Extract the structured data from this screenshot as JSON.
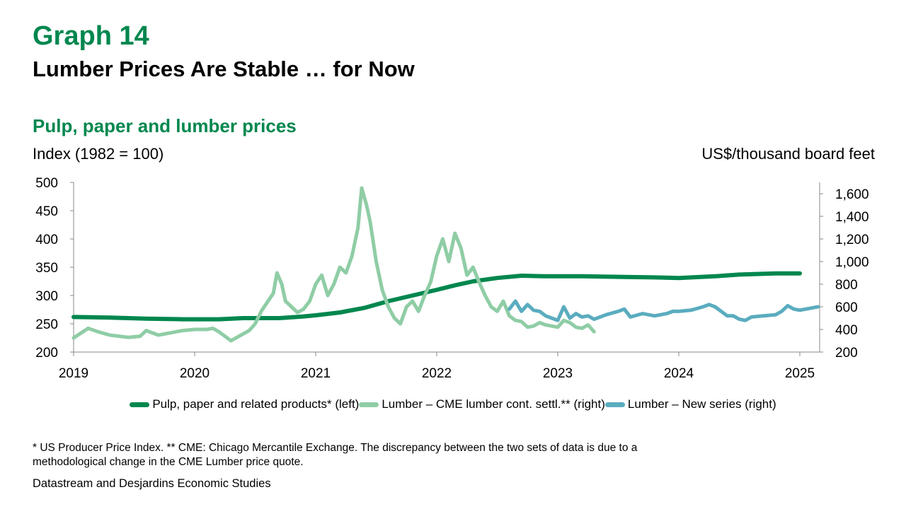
{
  "header": {
    "graph_number": "Graph 14",
    "title": "Lumber Prices Are Stable … for Now"
  },
  "footnote": "* US Producer Price Index. ** CME: Chicago Mercantile Exchange. The discrepancy between the two sets of data is due to a methodological change in the CME Lumber price quote.",
  "source": "Datastream and Desjardins Economic Studies",
  "colors": {
    "pulp": "#00874E",
    "cme": "#8FCDA5",
    "new": "#5AACBF",
    "title": "#00874E"
  },
  "chart_data": {
    "type": "line",
    "title": "Pulp, paper and lumber prices",
    "ylabel_left": "Index (1982 = 100)",
    "ylabel_right": "US$/thousand board feet",
    "xlim": [
      2019.0,
      2025.2
    ],
    "x_ticks": [
      "2019",
      "2020",
      "2021",
      "2022",
      "2023",
      "2024",
      "2025"
    ],
    "ylim_left": [
      200,
      500
    ],
    "y_ticks_left": [
      "200",
      "250",
      "300",
      "350",
      "400",
      "450",
      "500"
    ],
    "ylim_right": [
      200,
      1700
    ],
    "y_ticks_right": [
      "200",
      "400",
      "600",
      "800",
      "1,000",
      "1,200",
      "1,400",
      "1,600"
    ],
    "grid": false,
    "legend_position": "bottom",
    "series": [
      {
        "name": "Pulp, paper and related products* (left)",
        "axis": "left",
        "points": [
          [
            2019.0,
            262
          ],
          [
            2019.3,
            261
          ],
          [
            2019.6,
            259
          ],
          [
            2019.9,
            258
          ],
          [
            2020.2,
            258
          ],
          [
            2020.4,
            260
          ],
          [
            2020.7,
            260
          ],
          [
            2020.9,
            263
          ],
          [
            2021.0,
            265
          ],
          [
            2021.2,
            270
          ],
          [
            2021.4,
            278
          ],
          [
            2021.6,
            290
          ],
          [
            2021.8,
            300
          ],
          [
            2022.0,
            310
          ],
          [
            2022.15,
            318
          ],
          [
            2022.3,
            325
          ],
          [
            2022.5,
            331
          ],
          [
            2022.7,
            335
          ],
          [
            2022.9,
            334
          ],
          [
            2023.2,
            334
          ],
          [
            2023.5,
            333
          ],
          [
            2023.8,
            332
          ],
          [
            2024.0,
            331
          ],
          [
            2024.3,
            334
          ],
          [
            2024.5,
            337
          ],
          [
            2024.8,
            339
          ],
          [
            2025.0,
            339
          ]
        ]
      },
      {
        "name": "Lumber – CME lumber cont. settl.** (right)",
        "axis": "right",
        "points": [
          [
            2019.0,
            325
          ],
          [
            2019.05,
            360
          ],
          [
            2019.12,
            410
          ],
          [
            2019.2,
            380
          ],
          [
            2019.3,
            350
          ],
          [
            2019.45,
            330
          ],
          [
            2019.55,
            340
          ],
          [
            2019.6,
            390
          ],
          [
            2019.7,
            350
          ],
          [
            2019.8,
            370
          ],
          [
            2019.9,
            390
          ],
          [
            2020.0,
            400
          ],
          [
            2020.1,
            400
          ],
          [
            2020.15,
            410
          ],
          [
            2020.2,
            380
          ],
          [
            2020.25,
            340
          ],
          [
            2020.3,
            300
          ],
          [
            2020.35,
            330
          ],
          [
            2020.4,
            360
          ],
          [
            2020.45,
            390
          ],
          [
            2020.5,
            450
          ],
          [
            2020.55,
            560
          ],
          [
            2020.6,
            640
          ],
          [
            2020.65,
            720
          ],
          [
            2020.68,
            900
          ],
          [
            2020.72,
            800
          ],
          [
            2020.75,
            650
          ],
          [
            2020.8,
            600
          ],
          [
            2020.85,
            550
          ],
          [
            2020.9,
            580
          ],
          [
            2020.95,
            650
          ],
          [
            2021.0,
            800
          ],
          [
            2021.05,
            880
          ],
          [
            2021.1,
            700
          ],
          [
            2021.15,
            800
          ],
          [
            2021.2,
            950
          ],
          [
            2021.25,
            900
          ],
          [
            2021.3,
            1050
          ],
          [
            2021.35,
            1300
          ],
          [
            2021.38,
            1650
          ],
          [
            2021.42,
            1500
          ],
          [
            2021.45,
            1350
          ],
          [
            2021.5,
            1000
          ],
          [
            2021.55,
            750
          ],
          [
            2021.6,
            600
          ],
          [
            2021.65,
            500
          ],
          [
            2021.7,
            450
          ],
          [
            2021.75,
            600
          ],
          [
            2021.8,
            650
          ],
          [
            2021.85,
            560
          ],
          [
            2021.9,
            700
          ],
          [
            2021.95,
            820
          ],
          [
            2022.0,
            1050
          ],
          [
            2022.05,
            1200
          ],
          [
            2022.1,
            1000
          ],
          [
            2022.15,
            1250
          ],
          [
            2022.2,
            1120
          ],
          [
            2022.25,
            880
          ],
          [
            2022.3,
            950
          ],
          [
            2022.35,
            820
          ],
          [
            2022.4,
            700
          ],
          [
            2022.45,
            600
          ],
          [
            2022.5,
            560
          ],
          [
            2022.55,
            650
          ],
          [
            2022.6,
            520
          ],
          [
            2022.65,
            480
          ],
          [
            2022.7,
            470
          ],
          [
            2022.75,
            420
          ],
          [
            2022.8,
            430
          ],
          [
            2022.85,
            460
          ],
          [
            2022.9,
            440
          ],
          [
            2022.95,
            430
          ],
          [
            2023.0,
            420
          ],
          [
            2023.05,
            480
          ],
          [
            2023.1,
            460
          ],
          [
            2023.15,
            420
          ],
          [
            2023.2,
            410
          ],
          [
            2023.25,
            440
          ],
          [
            2023.3,
            380
          ]
        ]
      },
      {
        "name": "Lumber – New series (right)",
        "axis": "right",
        "points": [
          [
            2022.6,
            580
          ],
          [
            2022.65,
            650
          ],
          [
            2022.7,
            560
          ],
          [
            2022.75,
            620
          ],
          [
            2022.8,
            570
          ],
          [
            2022.85,
            560
          ],
          [
            2022.9,
            520
          ],
          [
            2022.95,
            500
          ],
          [
            2023.0,
            480
          ],
          [
            2023.05,
            600
          ],
          [
            2023.1,
            500
          ],
          [
            2023.15,
            540
          ],
          [
            2023.2,
            510
          ],
          [
            2023.25,
            520
          ],
          [
            2023.3,
            490
          ],
          [
            2023.4,
            530
          ],
          [
            2023.5,
            560
          ],
          [
            2023.55,
            580
          ],
          [
            2023.6,
            510
          ],
          [
            2023.7,
            540
          ],
          [
            2023.8,
            520
          ],
          [
            2023.9,
            540
          ],
          [
            2023.95,
            560
          ],
          [
            2024.0,
            560
          ],
          [
            2024.1,
            570
          ],
          [
            2024.2,
            600
          ],
          [
            2024.25,
            620
          ],
          [
            2024.3,
            600
          ],
          [
            2024.35,
            560
          ],
          [
            2024.4,
            520
          ],
          [
            2024.45,
            520
          ],
          [
            2024.5,
            490
          ],
          [
            2024.55,
            480
          ],
          [
            2024.6,
            510
          ],
          [
            2024.7,
            520
          ],
          [
            2024.8,
            530
          ],
          [
            2024.85,
            560
          ],
          [
            2024.9,
            610
          ],
          [
            2024.95,
            580
          ],
          [
            2025.0,
            570
          ],
          [
            2025.05,
            580
          ],
          [
            2025.1,
            590
          ],
          [
            2025.15,
            600
          ]
        ]
      }
    ]
  }
}
